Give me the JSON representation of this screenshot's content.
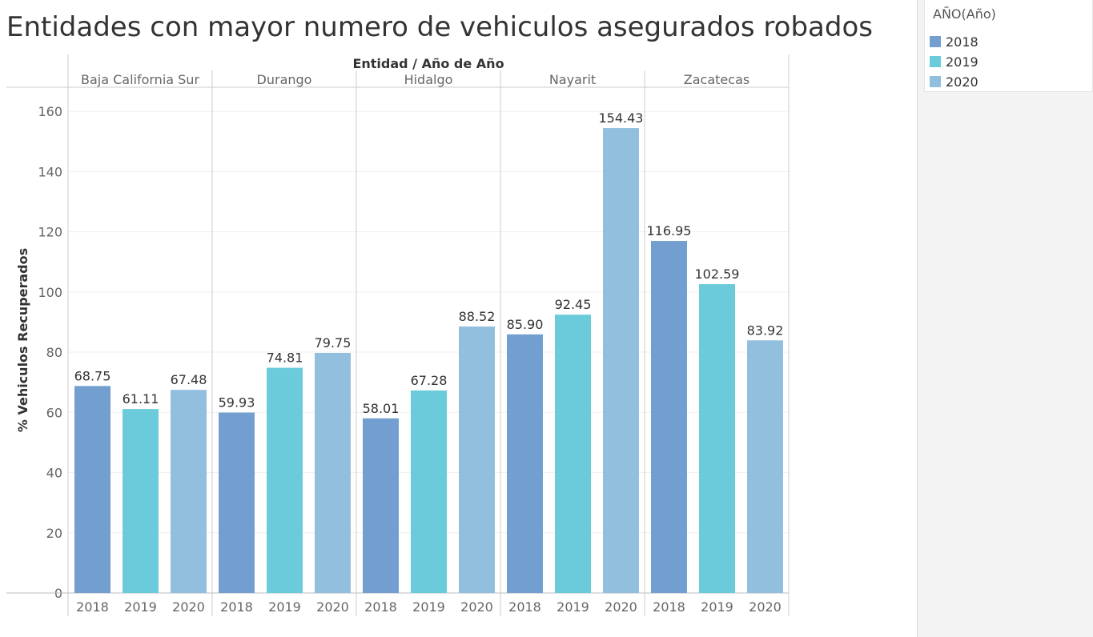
{
  "title": "Entidades con mayor numero de vehiculos asegurados robados",
  "legend": {
    "title": "AÑO(Año)",
    "items": [
      {
        "label": "2018",
        "color": "#729fcf"
      },
      {
        "label": "2019",
        "color": "#6bcbda"
      },
      {
        "label": "2020",
        "color": "#93bfdf"
      }
    ]
  },
  "chart_data": {
    "type": "bar",
    "header": "Entidad  /  Año de Año",
    "ylabel": "% Vehiculos Recuperados",
    "ylim": [
      0,
      168
    ],
    "yticks": [
      0,
      20,
      40,
      60,
      80,
      100,
      120,
      140,
      160
    ],
    "grid": true,
    "groups": [
      {
        "name": "Baja California Sur",
        "bars": [
          {
            "year": "2018",
            "value": 68.75
          },
          {
            "year": "2019",
            "value": 61.11
          },
          {
            "year": "2020",
            "value": 67.48
          }
        ]
      },
      {
        "name": "Durango",
        "bars": [
          {
            "year": "2018",
            "value": 59.93
          },
          {
            "year": "2019",
            "value": 74.81
          },
          {
            "year": "2020",
            "value": 79.75
          }
        ]
      },
      {
        "name": "Hidalgo",
        "bars": [
          {
            "year": "2018",
            "value": 58.01
          },
          {
            "year": "2019",
            "value": 67.28
          },
          {
            "year": "2020",
            "value": 88.52
          }
        ]
      },
      {
        "name": "Nayarit",
        "bars": [
          {
            "year": "2018",
            "value": 85.9
          },
          {
            "year": "2019",
            "value": 92.45
          },
          {
            "year": "2020",
            "value": 154.43
          }
        ]
      },
      {
        "name": "Zacatecas",
        "bars": [
          {
            "year": "2018",
            "value": 116.95
          },
          {
            "year": "2019",
            "value": 102.59
          },
          {
            "year": "2020",
            "value": 83.92
          }
        ]
      }
    ]
  }
}
